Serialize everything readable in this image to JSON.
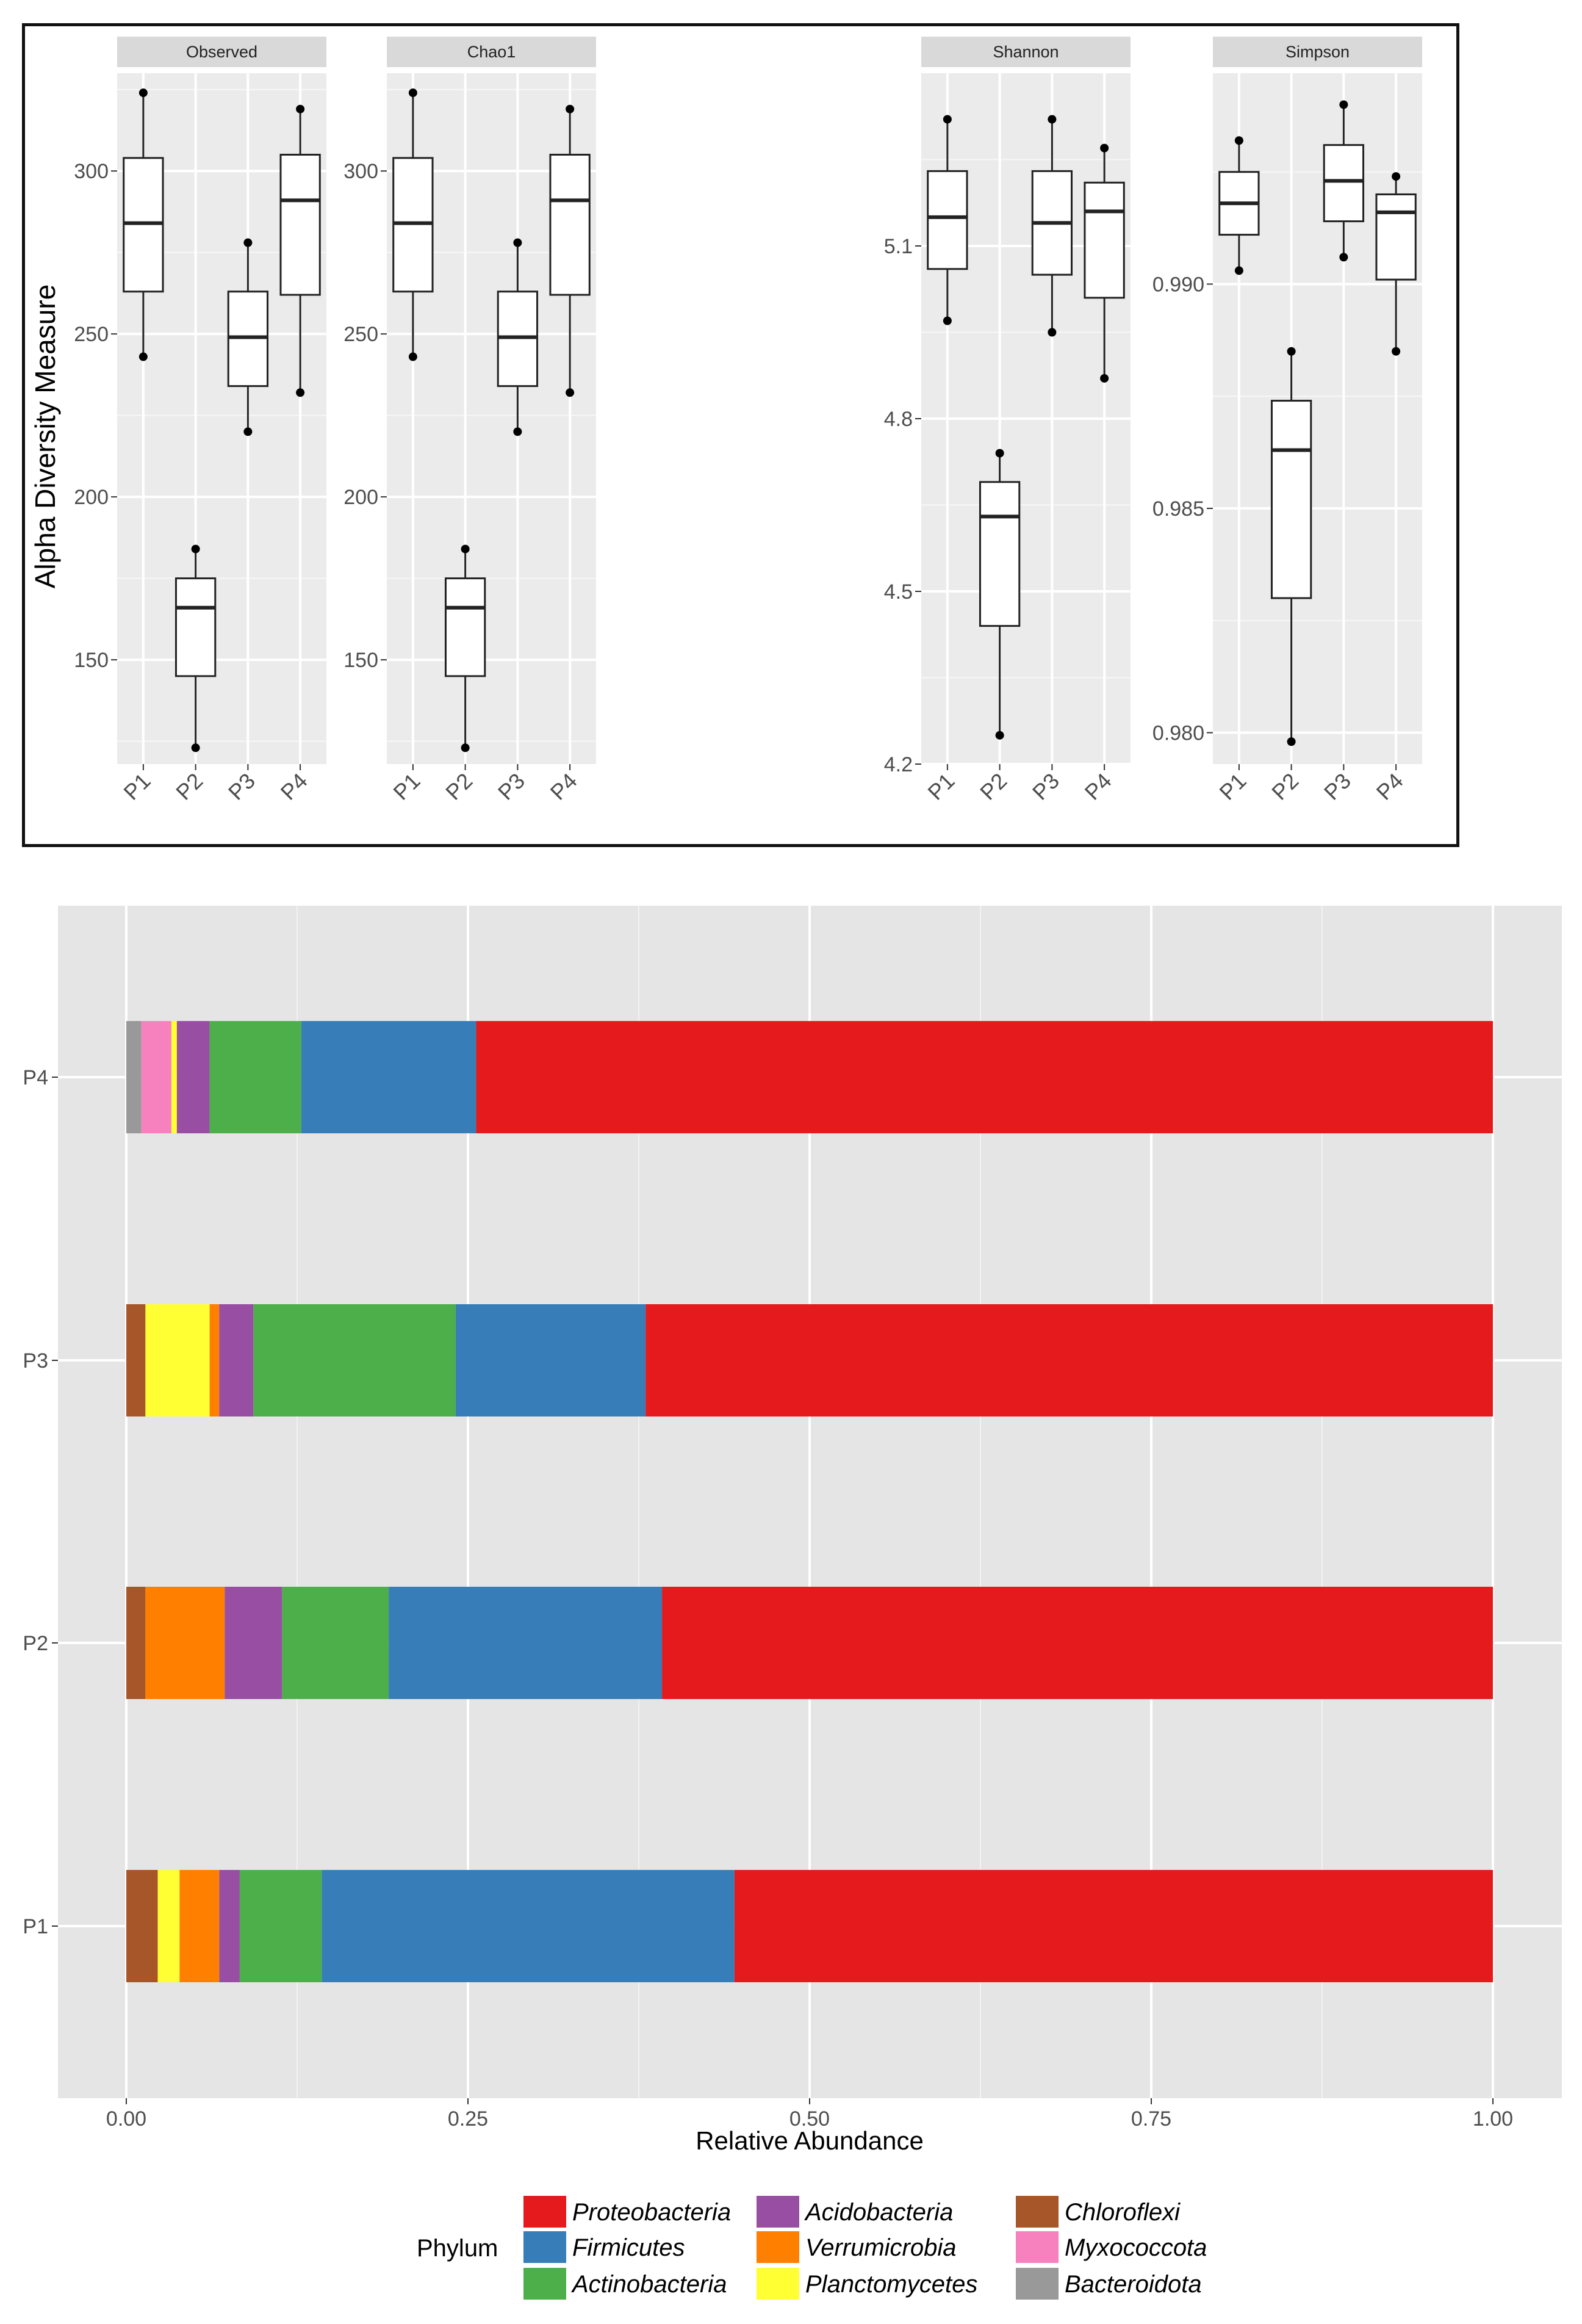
{
  "boxplot_figure": {
    "ylabel": "Alpha Diversity Measure"
  },
  "legend": {
    "title": "Phylum",
    "entries": [
      {
        "name": "Proteobacteria",
        "color": "#e41a1c"
      },
      {
        "name": "Firmicutes",
        "color": "#377eb8"
      },
      {
        "name": "Actinobacteria",
        "color": "#4daf4a"
      },
      {
        "name": "Acidobacteria",
        "color": "#984ea3"
      },
      {
        "name": "Verrumicrobia",
        "color": "#ff7f00"
      },
      {
        "name": "Planctomycetes",
        "color": "#ffff33"
      },
      {
        "name": "Chloroflexi",
        "color": "#a65628"
      },
      {
        "name": "Myxococcota",
        "color": "#f781bf"
      },
      {
        "name": "Bacteroidota",
        "color": "#999999"
      }
    ]
  },
  "chart_data": [
    {
      "type": "boxplot",
      "title": "Observed",
      "categories": [
        "P1",
        "P2",
        "P3",
        "P4"
      ],
      "ylim": [
        118,
        330
      ],
      "yticks": [
        150,
        200,
        250,
        300
      ],
      "ytick_labels": [
        "150",
        "200",
        "250",
        "300"
      ],
      "boxes": [
        {
          "min": 243,
          "q1": 263,
          "median": 284,
          "q3": 304,
          "max": 324
        },
        {
          "min": 123,
          "q1": 145,
          "median": 166,
          "q3": 175,
          "max": 184
        },
        {
          "min": 220,
          "q1": 234,
          "median": 249,
          "q3": 263,
          "max": 278
        },
        {
          "min": 232,
          "q1": 262,
          "median": 291,
          "q3": 305,
          "max": 319
        }
      ]
    },
    {
      "type": "boxplot",
      "title": "Chao1",
      "categories": [
        "P1",
        "P2",
        "P3",
        "P4"
      ],
      "ylim": [
        118,
        330
      ],
      "yticks": [
        150,
        200,
        250,
        300
      ],
      "ytick_labels": [
        "150",
        "200",
        "250",
        "300"
      ],
      "boxes": [
        {
          "min": 243,
          "q1": 263,
          "median": 284,
          "q3": 304,
          "max": 324
        },
        {
          "min": 123,
          "q1": 145,
          "median": 166,
          "q3": 175,
          "max": 184
        },
        {
          "min": 220,
          "q1": 234,
          "median": 249,
          "q3": 263,
          "max": 278
        },
        {
          "min": 232,
          "q1": 262,
          "median": 291,
          "q3": 305,
          "max": 319
        }
      ]
    },
    {
      "type": "boxplot",
      "title": "Shannon",
      "categories": [
        "P1",
        "P2",
        "P3",
        "P4"
      ],
      "ylim": [
        4.2,
        5.4
      ],
      "yticks": [
        4.2,
        4.5,
        4.8,
        5.1
      ],
      "ytick_labels": [
        "4.2",
        "4.5",
        "4.8",
        "5.1"
      ],
      "boxes": [
        {
          "min": 4.97,
          "q1": 5.06,
          "median": 5.15,
          "q3": 5.23,
          "max": 5.32
        },
        {
          "min": 4.25,
          "q1": 4.44,
          "median": 4.63,
          "q3": 4.69,
          "max": 4.74
        },
        {
          "min": 4.95,
          "q1": 5.05,
          "median": 5.14,
          "q3": 5.23,
          "max": 5.32
        },
        {
          "min": 4.87,
          "q1": 5.01,
          "median": 5.16,
          "q3": 5.21,
          "max": 5.27
        }
      ]
    },
    {
      "type": "boxplot",
      "title": "Simpson",
      "categories": [
        "P1",
        "P2",
        "P3",
        "P4"
      ],
      "ylim": [
        0.9793,
        0.9947
      ],
      "yticks": [
        0.98,
        0.985,
        0.99
      ],
      "ytick_labels": [
        "0.980",
        "0.985",
        "0.990"
      ],
      "boxes": [
        {
          "min": 0.9903,
          "q1": 0.9911,
          "median": 0.9918,
          "q3": 0.9925,
          "max": 0.9932
        },
        {
          "min": 0.9798,
          "q1": 0.983,
          "median": 0.9863,
          "q3": 0.9874,
          "max": 0.9885
        },
        {
          "min": 0.9906,
          "q1": 0.9914,
          "median": 0.9923,
          "q3": 0.9931,
          "max": 0.994
        },
        {
          "min": 0.9885,
          "q1": 0.9901,
          "median": 0.9916,
          "q3": 0.992,
          "max": 0.9924
        }
      ]
    },
    {
      "type": "stacked_bar_horizontal",
      "categories": [
        "P1",
        "P2",
        "P3",
        "P4"
      ],
      "xlabel": "Relative Abundance",
      "xlim": [
        0,
        1
      ],
      "xticks": [
        0,
        0.25,
        0.5,
        0.75,
        1
      ],
      "xtick_labels": [
        "0.00",
        "0.25",
        "0.50",
        "0.75",
        "1.00"
      ],
      "stack_order": [
        "Bacteroidota",
        "Chloroflexi",
        "Myxococcota",
        "Planctomycetes",
        "Verrumicrobia",
        "Acidobacteria",
        "Actinobacteria",
        "Firmicutes",
        "Proteobacteria"
      ],
      "series": [
        {
          "name": "Bacteroidota",
          "values": [
            0,
            0,
            0,
            0.011
          ]
        },
        {
          "name": "Chloroflexi",
          "values": [
            0.023,
            0.014,
            0.014,
            0
          ]
        },
        {
          "name": "Myxococcota",
          "values": [
            0,
            0,
            0,
            0.022
          ]
        },
        {
          "name": "Planctomycetes",
          "values": [
            0.016,
            0,
            0.047,
            0.004
          ]
        },
        {
          "name": "Verrumicrobia",
          "values": [
            0.029,
            0.058,
            0.007,
            0
          ]
        },
        {
          "name": "Acidobacteria",
          "values": [
            0.015,
            0.042,
            0.025,
            0.024
          ]
        },
        {
          "name": "Actinobacteria",
          "values": [
            0.06,
            0.078,
            0.148,
            0.067
          ]
        },
        {
          "name": "Firmicutes",
          "values": [
            0.302,
            0.2,
            0.139,
            0.128
          ]
        },
        {
          "name": "Proteobacteria",
          "values": [
            0.555,
            0.608,
            0.62,
            0.744
          ]
        }
      ]
    }
  ]
}
